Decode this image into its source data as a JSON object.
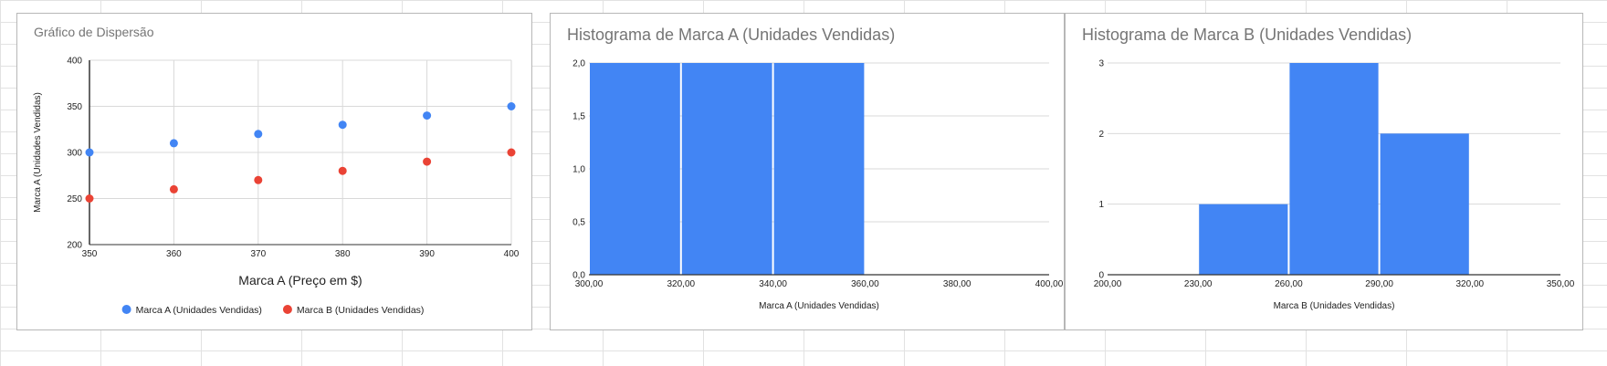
{
  "chart_data": [
    {
      "type": "scatter",
      "title": "Gráfico de Dispersão",
      "xlabel": "Marca A (Preço em $)",
      "ylabel": "Marca A (Unidades Vendidas)",
      "xlim": [
        350,
        400
      ],
      "ylim": [
        200,
        400
      ],
      "x_ticks": [
        "350",
        "360",
        "370",
        "380",
        "390",
        "400"
      ],
      "y_ticks": [
        "200",
        "250",
        "300",
        "350",
        "400"
      ],
      "grid": true,
      "legend_position": "bottom",
      "series": [
        {
          "name": "Marca A (Unidades Vendidas)",
          "color": "#4285f4",
          "x": [
            350,
            360,
            370,
            380,
            390,
            400
          ],
          "y": [
            300,
            310,
            320,
            330,
            340,
            350
          ]
        },
        {
          "name": "Marca B (Unidades Vendidas)",
          "color": "#ea4335",
          "x": [
            350,
            360,
            370,
            380,
            390,
            400
          ],
          "y": [
            250,
            260,
            270,
            280,
            290,
            300
          ]
        }
      ]
    },
    {
      "type": "bar",
      "title": "Histograma de Marca A (Unidades Vendidas)",
      "xlabel": "Marca A (Unidades Vendidas)",
      "ylabel": "",
      "xlim": [
        300,
        400
      ],
      "ylim": [
        0,
        2
      ],
      "x_ticks": [
        "300,00",
        "320,00",
        "340,00",
        "360,00",
        "380,00",
        "400,00"
      ],
      "y_ticks": [
        "0,0",
        "0,5",
        "1,0",
        "1,5",
        "2,0"
      ],
      "grid": true,
      "color": "#4285f4",
      "bins": [
        {
          "from": 300,
          "to": 320,
          "count": 2
        },
        {
          "from": 320,
          "to": 340,
          "count": 2
        },
        {
          "from": 340,
          "to": 360,
          "count": 2
        }
      ]
    },
    {
      "type": "bar",
      "title": "Histograma de Marca B (Unidades Vendidas)",
      "xlabel": "Marca B (Unidades Vendidas)",
      "ylabel": "",
      "xlim": [
        200,
        350
      ],
      "ylim": [
        0,
        3
      ],
      "x_ticks": [
        "200,00",
        "230,00",
        "260,00",
        "290,00",
        "320,00",
        "350,00"
      ],
      "y_ticks": [
        "0",
        "1",
        "2",
        "3"
      ],
      "grid": true,
      "color": "#4285f4",
      "bins": [
        {
          "from": 230,
          "to": 260,
          "count": 1
        },
        {
          "from": 260,
          "to": 290,
          "count": 3
        },
        {
          "from": 290,
          "to": 320,
          "count": 2
        }
      ]
    }
  ]
}
